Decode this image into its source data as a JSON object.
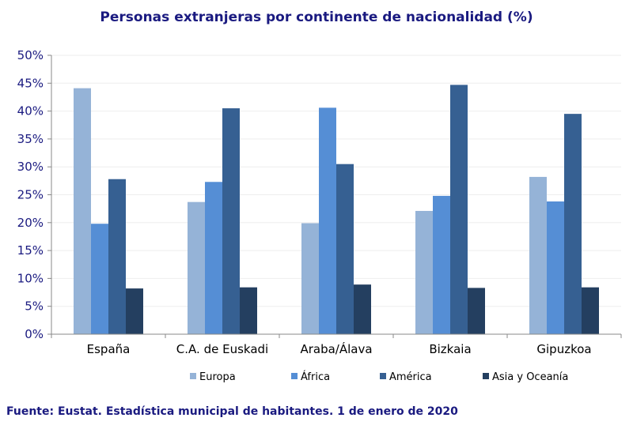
{
  "chart_data": {
    "type": "bar",
    "title": "Personas extranjeras por continente de nacionalidad (%)",
    "categories": [
      "España",
      "C.A. de Euskadi",
      "Araba/Álava",
      "Bizkaia",
      "Gipuzkoa"
    ],
    "series": [
      {
        "name": "Europa",
        "color": "#95b3d7",
        "values": [
          44.1,
          23.7,
          19.9,
          22.1,
          28.2
        ]
      },
      {
        "name": "África",
        "color": "#558ed5",
        "values": [
          19.8,
          27.3,
          40.6,
          24.8,
          23.8
        ]
      },
      {
        "name": "América",
        "color": "#366092",
        "values": [
          27.8,
          40.5,
          30.5,
          44.7,
          39.5
        ]
      },
      {
        "name": "Asia y Oceanía",
        "color": "#243f60",
        "values": [
          8.2,
          8.4,
          8.9,
          8.3,
          8.4
        ]
      }
    ],
    "yticks": [
      "0%",
      "5%",
      "10%",
      "15%",
      "20%",
      "25%",
      "30%",
      "35%",
      "40%",
      "45%",
      "50%"
    ],
    "ylim": [
      0,
      50
    ],
    "legend_position": "bottom"
  },
  "source": "Fuente: Eustat. Estadística municipal de habitantes. 1 de enero de 2020"
}
